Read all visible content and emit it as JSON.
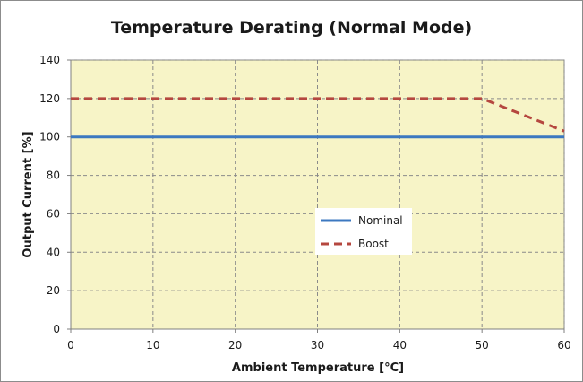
{
  "chart_data": {
    "type": "line",
    "title": "Temperature Derating (Normal Mode)",
    "xlabel": "Ambient Temperature [°C]",
    "ylabel": "Output Current [%]",
    "xlim": [
      0,
      60
    ],
    "ylim": [
      0,
      140
    ],
    "xticks": [
      0,
      10,
      20,
      30,
      40,
      50,
      60
    ],
    "yticks": [
      0,
      20,
      40,
      60,
      80,
      100,
      120,
      140
    ],
    "grid": true,
    "plot_background": "#f7f4c7",
    "legend_position": "center-right",
    "series": [
      {
        "name": "Nominal",
        "color": "#3c78c0",
        "style": "solid",
        "points": [
          [
            0,
            100
          ],
          [
            60,
            100
          ]
        ]
      },
      {
        "name": "Boost",
        "color": "#b5473f",
        "style": "dashed",
        "points": [
          [
            0,
            120
          ],
          [
            50,
            120
          ],
          [
            60,
            103
          ]
        ]
      }
    ]
  }
}
